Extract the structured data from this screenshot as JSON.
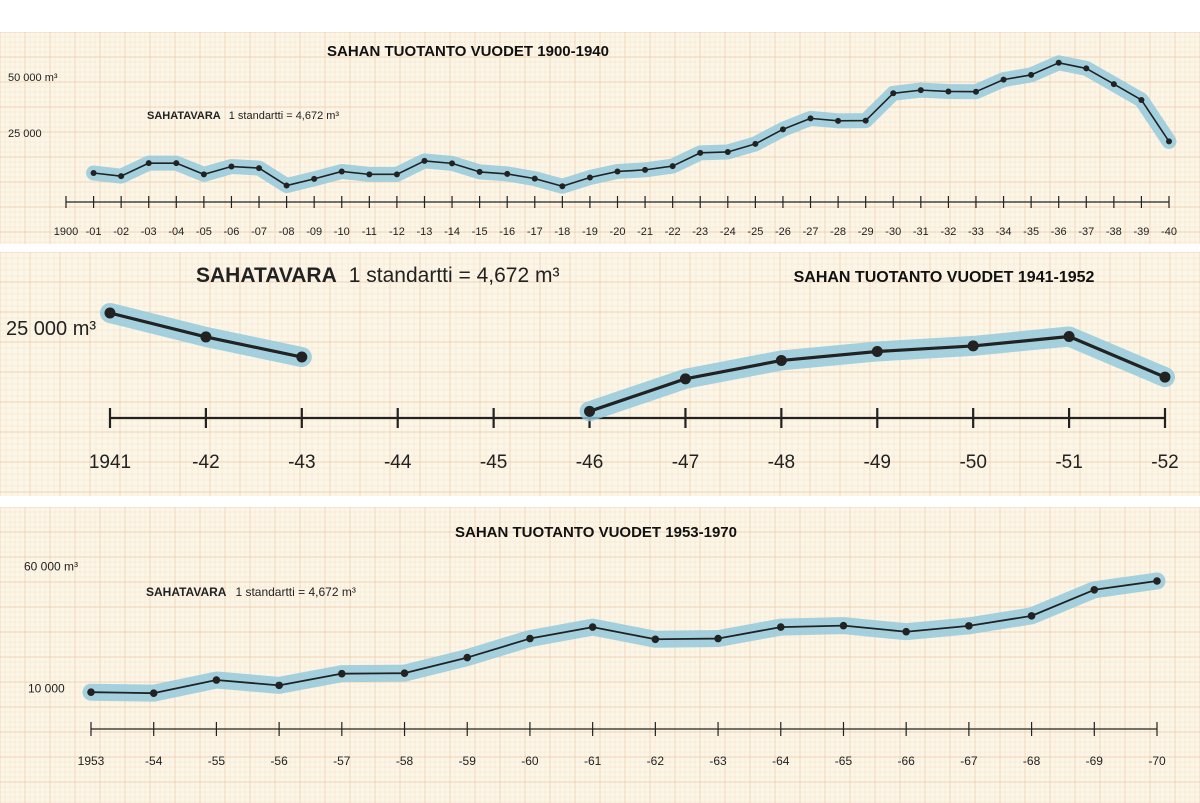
{
  "accent": "#8fc8dc",
  "line_color": "#222222",
  "grid_color": "#f0c9a4",
  "chart_data": [
    {
      "type": "line",
      "title": "SAHAN TUOTANTO VUODET 1900-1940",
      "note": {
        "bold": "SAHATAVARA",
        "rest": "1 standartti  =  4,672 m³"
      },
      "y_tick_labels": [
        {
          "value": 50000,
          "label": "50 000 m³"
        },
        {
          "value": 25000,
          "label": "25 000"
        }
      ],
      "ylim": [
        0,
        60000
      ],
      "x_tick_labels": [
        "1900",
        "-01",
        "-02",
        "-03",
        "-04",
        "-05",
        "-06",
        "-07",
        "-08",
        "-09",
        "-10",
        "-11",
        "-12",
        "-13",
        "-14",
        "-15",
        "-16",
        "-17",
        "-18",
        "-19",
        "-20",
        "-21",
        "-22",
        "-23",
        "-24",
        "-25",
        "-26",
        "-27",
        "-28",
        "-29",
        "-30",
        "-31",
        "-32",
        "-33",
        "-34",
        "-35",
        "-36",
        "-37",
        "-38",
        "-39",
        "-40"
      ],
      "series": [
        {
          "points": [
            [
              1901,
              11600
            ],
            [
              1902,
              10200
            ],
            [
              1903,
              16000
            ],
            [
              1904,
              16000
            ],
            [
              1905,
              11000
            ],
            [
              1906,
              14500
            ],
            [
              1907,
              13800
            ],
            [
              1908,
              6000
            ],
            [
              1909,
              9000
            ],
            [
              1910,
              12300
            ],
            [
              1911,
              11000
            ],
            [
              1912,
              11000
            ],
            [
              1913,
              17000
            ],
            [
              1914,
              15900
            ],
            [
              1915,
              12100
            ],
            [
              1916,
              11200
            ],
            [
              1917,
              9100
            ],
            [
              1918,
              5700
            ],
            [
              1919,
              9600
            ],
            [
              1920,
              12300
            ],
            [
              1921,
              13000
            ],
            [
              1922,
              14700
            ],
            [
              1923,
              20600
            ],
            [
              1924,
              21000
            ],
            [
              1925,
              24600
            ],
            [
              1926,
              31100
            ],
            [
              1927,
              36000
            ],
            [
              1928,
              34900
            ],
            [
              1929,
              35000
            ],
            [
              1930,
              47200
            ],
            [
              1931,
              48600
            ],
            [
              1932,
              48000
            ],
            [
              1933,
              47900
            ],
            [
              1934,
              53300
            ],
            [
              1935,
              55400
            ],
            [
              1936,
              60800
            ],
            [
              1937,
              58300
            ],
            [
              1938,
              51300
            ],
            [
              1939,
              44200
            ],
            [
              1940,
              25700
            ]
          ]
        }
      ]
    },
    {
      "type": "line",
      "title": "SAHAN TUOTANTO VUODET 1941-1952",
      "note": {
        "bold": "SAHATAVARA",
        "rest": "1 standartti  =  4,672  m³"
      },
      "y_tick_labels": [
        {
          "value": 25000,
          "label": "25 000 m³"
        }
      ],
      "ylim": [
        0,
        32000
      ],
      "x_tick_labels": [
        "1941",
        "-42",
        "-43",
        "-44",
        "-45",
        "-46",
        "-47",
        "-48",
        "-49",
        "-50",
        "-51",
        "-52"
      ],
      "series": [
        {
          "points": [
            [
              1941,
              25500
            ],
            [
              1942,
              19900
            ],
            [
              1943,
              15200
            ]
          ]
        },
        {
          "points": [
            [
              1946,
              2500
            ],
            [
              1947,
              10100
            ],
            [
              1948,
              14400
            ],
            [
              1949,
              16500
            ],
            [
              1950,
              17800
            ],
            [
              1951,
              20000
            ],
            [
              1952,
              10500
            ]
          ]
        }
      ]
    },
    {
      "type": "line",
      "title": "SAHAN TUOTANTO VUODET 1953-1970",
      "note": {
        "bold": "SAHATAVARA",
        "rest": "1 standartti  =  4,672  m³"
      },
      "y_tick_labels": [
        {
          "value": 60000,
          "label": "60 000 m³"
        },
        {
          "value": 10000,
          "label": "10 000"
        }
      ],
      "ylim": [
        0,
        65000
      ],
      "x_tick_labels": [
        "1953",
        "-54",
        "-55",
        "-56",
        "-57",
        "-58",
        "-59",
        "-60",
        "-61",
        "-62",
        "-63",
        "-64",
        "-65",
        "-66",
        "-67",
        "-68",
        "-69",
        "-70"
      ],
      "series": [
        {
          "points": [
            [
              1953,
              11400
            ],
            [
              1954,
              11000
            ],
            [
              1955,
              16400
            ],
            [
              1956,
              14200
            ],
            [
              1957,
              19000
            ],
            [
              1958,
              19200
            ],
            [
              1959,
              25600
            ],
            [
              1960,
              33400
            ],
            [
              1961,
              38100
            ],
            [
              1962,
              33100
            ],
            [
              1963,
              33400
            ],
            [
              1964,
              38100
            ],
            [
              1965,
              38700
            ],
            [
              1966,
              36200
            ],
            [
              1967,
              38600
            ],
            [
              1968,
              42700
            ],
            [
              1969,
              53400
            ],
            [
              1970,
              57000
            ]
          ]
        }
      ]
    }
  ]
}
